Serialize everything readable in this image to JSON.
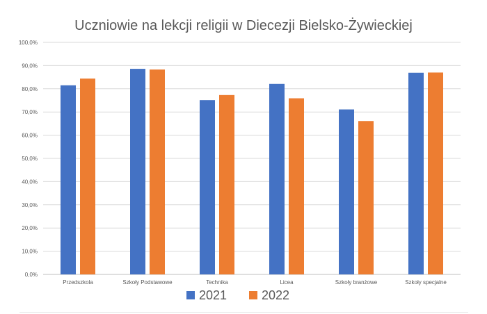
{
  "chart_data": {
    "type": "bar",
    "title": "Uczniowie na lekcji religii w Diecezji Bielsko-Żywieckiej",
    "xlabel": "",
    "ylabel": "",
    "ylim": [
      0,
      100
    ],
    "yticks": [
      "0,0%",
      "10,0%",
      "20,0%",
      "30,0%",
      "40,0%",
      "50,0%",
      "60,0%",
      "70,0%",
      "80,0%",
      "90,0%",
      "100,0%"
    ],
    "categories": [
      "Przedszkola",
      "Szkoły Podstawowe",
      "Technika",
      "Licea",
      "Szkoły branżowe",
      "Szkoły specjalne"
    ],
    "series": [
      {
        "name": "2021",
        "color": "#4472c4",
        "values": [
          81.5,
          88.6,
          75.1,
          82.1,
          71.1,
          86.9
        ]
      },
      {
        "name": "2022",
        "color": "#ed7d31",
        "values": [
          84.4,
          88.3,
          77.3,
          75.9,
          66.1,
          87.0
        ]
      }
    ],
    "grid": true,
    "legend_position": "bottom"
  }
}
